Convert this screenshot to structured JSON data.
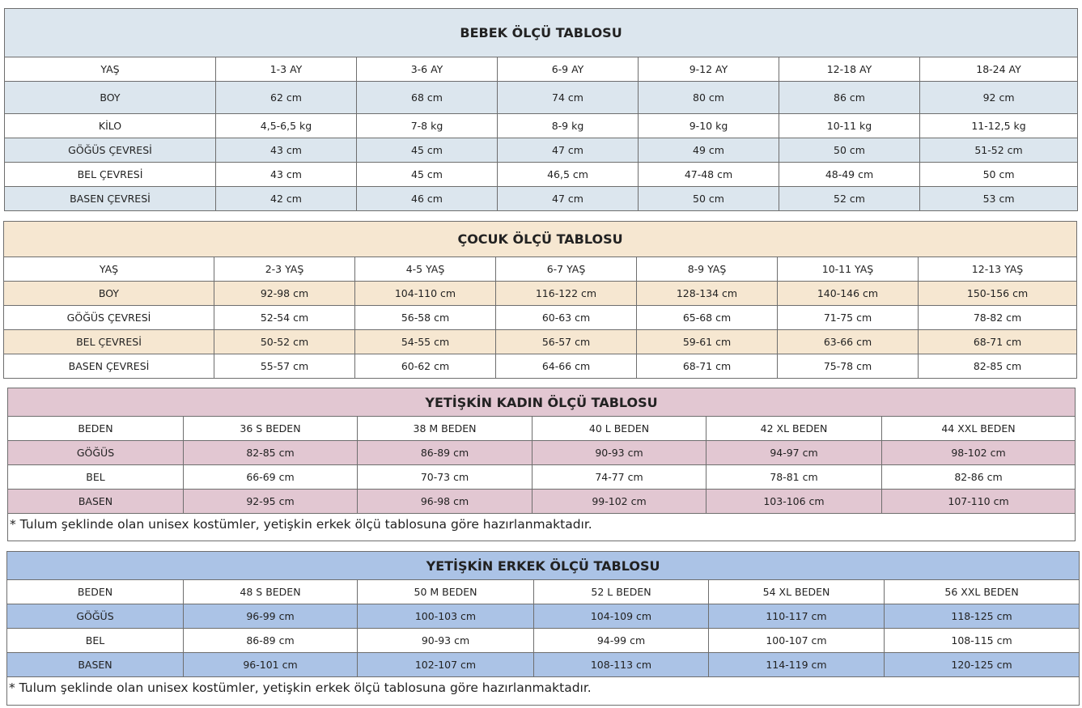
{
  "tables": [
    {
      "title": "BEBEK ÖLÇÜ TABLOSU",
      "color": "#dce6ee",
      "header": [
        "YAŞ",
        "1-3 AY",
        "3-6 AY",
        "6-9 AY",
        "9-12 AY",
        "12-18 AY",
        "18-24 AY"
      ],
      "rows": [
        [
          "BOY",
          "62 cm",
          "68 cm",
          "74 cm",
          "80 cm",
          "86 cm",
          "92 cm"
        ],
        [
          "KİLO",
          "4,5-6,5 kg",
          "7-8 kg",
          "8-9 kg",
          "9-10 kg",
          "10-11 kg",
          "11-12,5 kg"
        ],
        [
          "GÖĞÜS ÇEVRESİ",
          "43 cm",
          "45 cm",
          "47 cm",
          "49 cm",
          "50 cm",
          "51-52 cm"
        ],
        [
          "BEL ÇEVRESİ",
          "43 cm",
          "45 cm",
          "46,5 cm",
          "47-48 cm",
          "48-49 cm",
          "50 cm"
        ],
        [
          "BASEN ÇEVRESİ",
          "42 cm",
          "46 cm",
          "47 cm",
          "50 cm",
          "52 cm",
          "53 cm"
        ]
      ]
    },
    {
      "title": "ÇOCUK ÖLÇÜ TABLOSU",
      "color": "#f6e7d1",
      "header": [
        "YAŞ",
        "2-3 YAŞ",
        "4-5 YAŞ",
        "6-7 YAŞ",
        "8-9 YAŞ",
        "10-11 YAŞ",
        "12-13 YAŞ"
      ],
      "rows": [
        [
          "BOY",
          "92-98 cm",
          "104-110 cm",
          "116-122 cm",
          "128-134 cm",
          "140-146 cm",
          "150-156 cm"
        ],
        [
          "GÖĞÜS ÇEVRESİ",
          "52-54 cm",
          "56-58 cm",
          "60-63 cm",
          "65-68 cm",
          "71-75 cm",
          "78-82 cm"
        ],
        [
          "BEL ÇEVRESİ",
          "50-52 cm",
          "54-55 cm",
          "56-57 cm",
          "59-61 cm",
          "63-66 cm",
          "68-71 cm"
        ],
        [
          "BASEN ÇEVRESİ",
          "55-57 cm",
          "60-62 cm",
          "64-66 cm",
          "68-71 cm",
          "75-78 cm",
          "82-85 cm"
        ]
      ]
    },
    {
      "title": "YETİŞKİN KADIN ÖLÇÜ TABLOSU",
      "color": "#e2c7d2",
      "header": [
        "BEDEN",
        "36 S BEDEN",
        "38 M BEDEN",
        "40 L BEDEN",
        "42 XL BEDEN",
        "44 XXL BEDEN"
      ],
      "rows": [
        [
          "GÖĞÜS",
          "82-85 cm",
          "86-89 cm",
          "90-93 cm",
          "94-97 cm",
          "98-102 cm"
        ],
        [
          "BEL",
          "66-69 cm",
          "70-73 cm",
          "74-77 cm",
          "78-81 cm",
          "82-86 cm"
        ],
        [
          "BASEN",
          "92-95 cm",
          "96-98 cm",
          "99-102 cm",
          "103-106 cm",
          "107-110 cm"
        ]
      ],
      "note": "* Tulum şeklinde olan unisex kostümler, yetişkin erkek ölçü tablosuna göre hazırlanmaktadır."
    },
    {
      "title": "YETİŞKİN ERKEK ÖLÇÜ TABLOSU",
      "color": "#abc3e6",
      "header": [
        "BEDEN",
        "48 S BEDEN",
        "50 M BEDEN",
        "52 L BEDEN",
        "54 XL BEDEN",
        "56 XXL BEDEN"
      ],
      "rows": [
        [
          "GÖĞÜS",
          "96-99 cm",
          "100-103 cm",
          "104-109 cm",
          "110-117 cm",
          "118-125 cm"
        ],
        [
          "BEL",
          "86-89 cm",
          "90-93 cm",
          "94-99 cm",
          "100-107 cm",
          "108-115 cm"
        ],
        [
          "BASEN",
          "96-101 cm",
          "102-107 cm",
          "108-113 cm",
          "114-119 cm",
          "120-125 cm"
        ]
      ],
      "note": "* Tulum şeklinde olan unisex kostümler, yetişkin erkek ölçü  tablosuna göre hazırlanmaktadır."
    }
  ]
}
